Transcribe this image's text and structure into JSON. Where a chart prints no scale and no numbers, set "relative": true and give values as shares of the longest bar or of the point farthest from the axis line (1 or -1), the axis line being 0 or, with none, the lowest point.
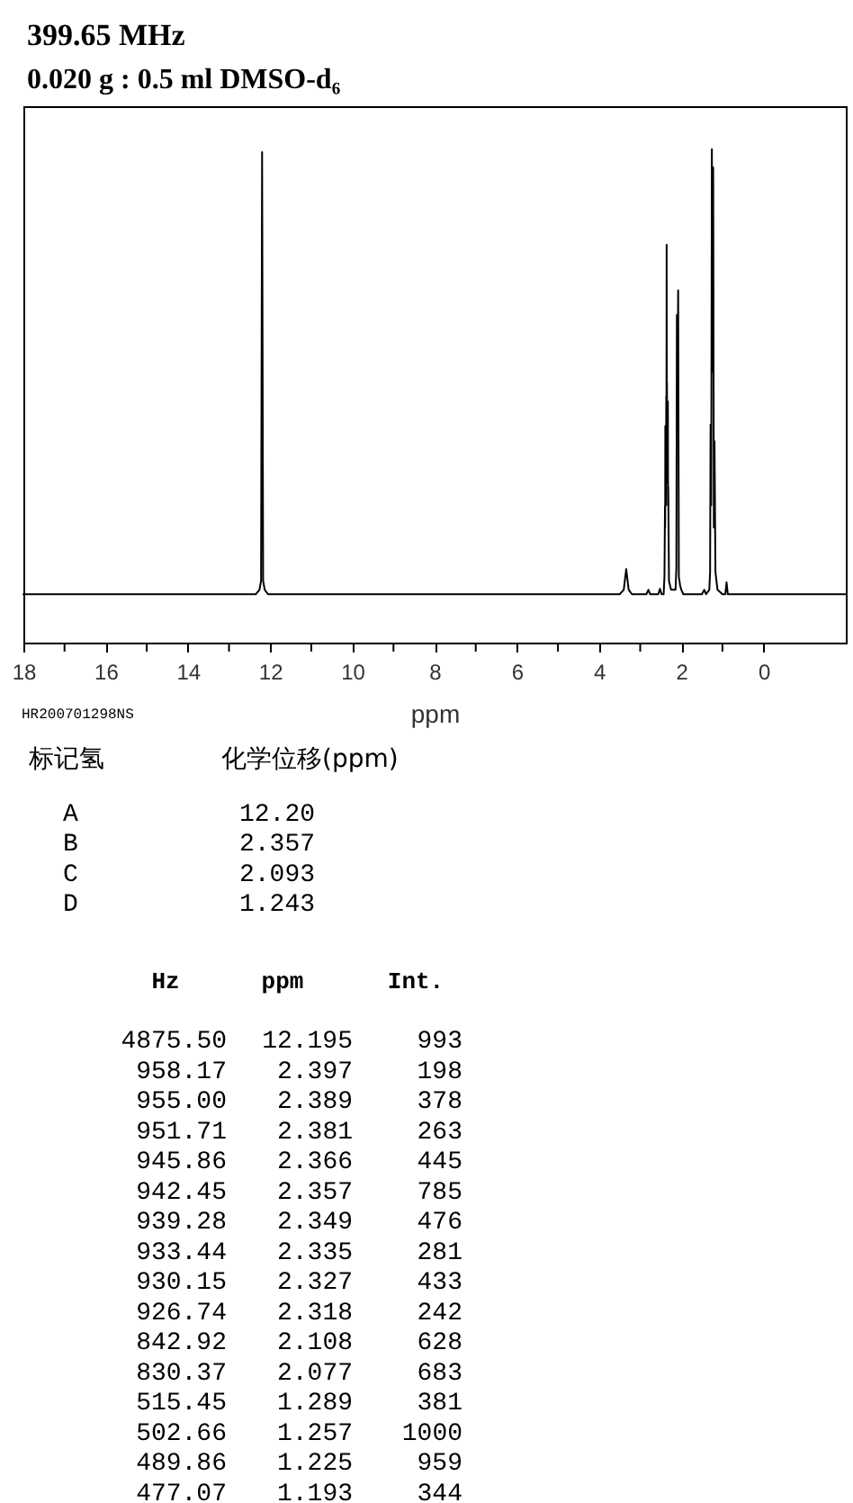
{
  "chart_data": {
    "type": "line",
    "title": "399.65 MHz",
    "subtitle": "0.020 g : 0.5 ml DMSO-d₆",
    "xlabel": "ppm",
    "relative": true,
    "xlim": [
      18,
      -2
    ],
    "xticks": [
      18,
      {
        "value": 17,
        "label": null
      },
      16,
      {
        "value": 15,
        "label": null
      },
      14,
      {
        "value": 13,
        "label": null
      },
      12,
      {
        "value": 11,
        "label": null
      },
      10,
      {
        "value": 9,
        "label": null
      },
      8,
      {
        "value": 7,
        "label": null
      },
      6,
      {
        "value": 5,
        "label": null
      },
      4,
      {
        "value": 3,
        "label": null
      },
      2,
      {
        "value": 1,
        "label": null
      },
      0
    ],
    "x": [
      18,
      12.35,
      12.26,
      12.22,
      12.195,
      12.17,
      12.13,
      12.05,
      3.5,
      3.4,
      3.34,
      3.28,
      3.2,
      2.85,
      2.8,
      2.76,
      2.56,
      2.52,
      2.48,
      2.43,
      2.41,
      2.397,
      2.393,
      2.389,
      2.385,
      2.381,
      2.373,
      2.366,
      2.362,
      2.357,
      2.353,
      2.349,
      2.342,
      2.335,
      2.331,
      2.327,
      2.322,
      2.318,
      2.3,
      2.25,
      2.14,
      2.12,
      2.108,
      2.093,
      2.077,
      2.06,
      2.03,
      2.0,
      1.95,
      1.5,
      1.44,
      1.4,
      1.32,
      1.3,
      1.289,
      1.273,
      1.257,
      1.241,
      1.225,
      1.209,
      1.193,
      1.17,
      1.12,
      1.0,
      0.93,
      0.9,
      0.87,
      0,
      -2
    ],
    "series": [
      {
        "color": "#000000",
        "values": [
          0.098,
          0.098,
          0.107,
          0.125,
          0.994,
          0.125,
          0.107,
          0.098,
          0.098,
          0.107,
          0.149,
          0.107,
          0.098,
          0.098,
          0.107,
          0.098,
          0.098,
          0.109,
          0.098,
          0.098,
          0.134,
          0.277,
          0.233,
          0.439,
          0.278,
          0.335,
          0.278,
          0.499,
          0.414,
          0.806,
          0.459,
          0.527,
          0.324,
          0.351,
          0.324,
          0.489,
          0.278,
          0.316,
          0.125,
          0.107,
          0.107,
          0.152,
          0.664,
          0.495,
          0.714,
          0.134,
          0.116,
          0.107,
          0.098,
          0.098,
          0.107,
          0.098,
          0.107,
          0.143,
          0.442,
          0.278,
          1.0,
          0.549,
          0.963,
          0.233,
          0.408,
          0.143,
          0.107,
          0.098,
          0.098,
          0.122,
          0.098,
          0.098,
          0.098
        ]
      }
    ],
    "annotations": [
      "HR200701298NS",
      "标记氢",
      "化学位移(ppm)",
      "A",
      "12.20",
      "B",
      "2.357",
      "C",
      "2.093",
      "D",
      "1.243",
      "Hz",
      "ppm",
      "Int.",
      "4875.50",
      "12.195",
      "993",
      "958.17",
      "2.397",
      "198",
      "955.00",
      "2.389",
      "378",
      "951.71",
      "2.381",
      "263",
      "945.86",
      "2.366",
      "445",
      "942.45",
      "2.357",
      "785",
      "939.28",
      "2.349",
      "476",
      "933.44",
      "2.335",
      "281",
      "930.15",
      "2.327",
      "433",
      "926.74",
      "2.318",
      "242",
      "842.92",
      "2.108",
      "628",
      "830.37",
      "2.077",
      "683",
      "515.45",
      "1.289",
      "381",
      "502.66",
      "1.257",
      "1000",
      "489.86",
      "1.225",
      "959",
      "477.07",
      "1.193",
      "344"
    ]
  }
}
